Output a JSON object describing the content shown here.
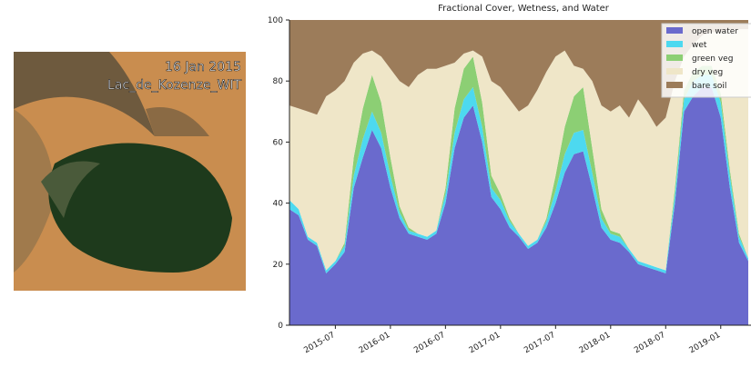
{
  "image": {
    "date": "16 Jan 2015",
    "name": "Lac_de_Kozenze_WIT"
  },
  "chart_data": {
    "type": "stacked_area",
    "title": "Fractional Cover, Wetness, and Water",
    "x": [
      "2015-02",
      "2015-03",
      "2015-04",
      "2015-05",
      "2015-06",
      "2015-07",
      "2015-08",
      "2015-09",
      "2015-10",
      "2015-11",
      "2015-12",
      "2016-01",
      "2016-02",
      "2016-03",
      "2016-04",
      "2016-05",
      "2016-06",
      "2016-07",
      "2016-08",
      "2016-09",
      "2016-10",
      "2016-11",
      "2016-12",
      "2017-01",
      "2017-02",
      "2017-03",
      "2017-04",
      "2017-05",
      "2017-06",
      "2017-07",
      "2017-08",
      "2017-09",
      "2017-10",
      "2017-11",
      "2017-12",
      "2018-01",
      "2018-02",
      "2018-03",
      "2018-04",
      "2018-05",
      "2018-06",
      "2018-07",
      "2018-08",
      "2018-09",
      "2018-10",
      "2018-11",
      "2018-12",
      "2019-01",
      "2019-02",
      "2019-03",
      "2019-04"
    ],
    "series": [
      {
        "name": "open water",
        "color": "#6a6acd",
        "values": [
          38,
          36,
          28,
          26,
          17,
          20,
          24,
          45,
          55,
          64,
          58,
          45,
          35,
          30,
          29,
          28,
          30,
          40,
          58,
          68,
          72,
          60,
          42,
          38,
          32,
          29,
          25,
          27,
          32,
          40,
          50,
          56,
          57,
          45,
          32,
          28,
          27,
          24,
          20,
          19,
          18,
          17,
          40,
          70,
          75,
          78,
          78,
          68,
          45,
          27,
          21
        ]
      },
      {
        "name": "wet",
        "color": "#4dd9f0",
        "values": [
          3,
          2,
          1,
          1,
          1,
          1,
          2,
          4,
          6,
          6,
          5,
          4,
          2,
          1,
          1,
          1,
          1,
          3,
          5,
          6,
          6,
          5,
          3,
          3,
          2,
          1,
          1,
          1,
          2,
          4,
          6,
          7,
          7,
          5,
          3,
          2,
          2,
          1,
          1,
          1,
          1,
          1,
          3,
          4,
          5,
          4,
          4,
          5,
          4,
          2,
          1
        ]
      },
      {
        "name": "green veg",
        "color": "#8ccf74",
        "values": [
          0,
          0,
          0,
          0,
          0,
          0,
          1,
          6,
          10,
          12,
          10,
          6,
          2,
          1,
          0,
          0,
          0,
          2,
          8,
          10,
          10,
          8,
          4,
          2,
          1,
          0,
          0,
          0,
          1,
          5,
          9,
          12,
          14,
          8,
          3,
          1,
          1,
          0,
          0,
          0,
          0,
          0,
          2,
          3,
          3,
          3,
          3,
          3,
          2,
          1,
          0
        ]
      },
      {
        "name": "dry veg",
        "color": "#efe6c8",
        "values": [
          31,
          33,
          41,
          42,
          57,
          56,
          53,
          31,
          18,
          8,
          15,
          29,
          41,
          46,
          52,
          55,
          53,
          40,
          15,
          5,
          2,
          15,
          31,
          35,
          39,
          40,
          46,
          49,
          48,
          39,
          25,
          10,
          6,
          22,
          34,
          39,
          42,
          43,
          53,
          50,
          46,
          50,
          35,
          11,
          9,
          10,
          11,
          20,
          46,
          67,
          75
        ]
      },
      {
        "name": "bare soil",
        "color": "#9c7c5a",
        "values": [
          28,
          29,
          30,
          31,
          25,
          23,
          20,
          14,
          11,
          10,
          12,
          16,
          20,
          22,
          18,
          16,
          16,
          15,
          14,
          11,
          10,
          12,
          20,
          22,
          26,
          30,
          28,
          23,
          17,
          12,
          10,
          15,
          16,
          20,
          28,
          30,
          28,
          32,
          26,
          30,
          35,
          32,
          20,
          12,
          8,
          5,
          4,
          4,
          3,
          3,
          3
        ]
      }
    ],
    "xlim": [
      "2015-02",
      "2019-04"
    ],
    "xticks": [
      "2015-07",
      "2016-01",
      "2016-07",
      "2017-01",
      "2017-07",
      "2018-01",
      "2018-07",
      "2019-01"
    ],
    "ylim": [
      0,
      100
    ],
    "yticks": [
      0,
      20,
      40,
      60,
      80,
      100
    ],
    "legend": "upper right"
  }
}
